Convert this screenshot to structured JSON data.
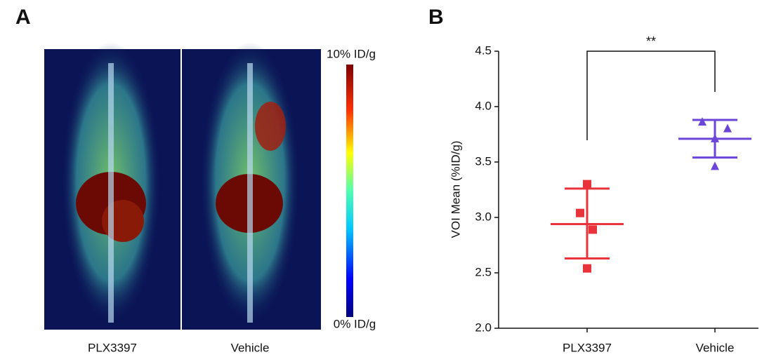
{
  "panel_a": {
    "label": "A",
    "images": [
      {
        "label": "PLX3397"
      },
      {
        "label": "Vehicle"
      }
    ],
    "colorbar": {
      "max_label": "10% ID/g",
      "min_label": "0% ID/g"
    }
  },
  "chart_data": {
    "type": "scatter",
    "panel_label": "B",
    "ylabel": "VOI Mean (%ID/g)",
    "categories": [
      "PLX3397",
      "Vehicle"
    ],
    "ylim": [
      2.0,
      4.5
    ],
    "yticks": [
      {
        "value": 2.0,
        "label": "2.0"
      },
      2.5,
      {
        "value": 3.0,
        "label": "3.0"
      },
      3.5,
      {
        "value": 4.0,
        "label": "4.0"
      },
      4.5
    ],
    "annotation": "**",
    "series": [
      {
        "color": "#e8333a",
        "marker": "square",
        "values": [
          3.3,
          3.04,
          2.89,
          2.54
        ],
        "mean": 2.94,
        "error_high": 3.26,
        "error_low": 2.63
      },
      {
        "color": "#6a45d8",
        "marker": "triangle",
        "values": [
          3.86,
          3.8,
          3.71,
          3.46
        ],
        "mean": 3.71,
        "error_high": 3.88,
        "error_low": 3.54
      }
    ]
  }
}
